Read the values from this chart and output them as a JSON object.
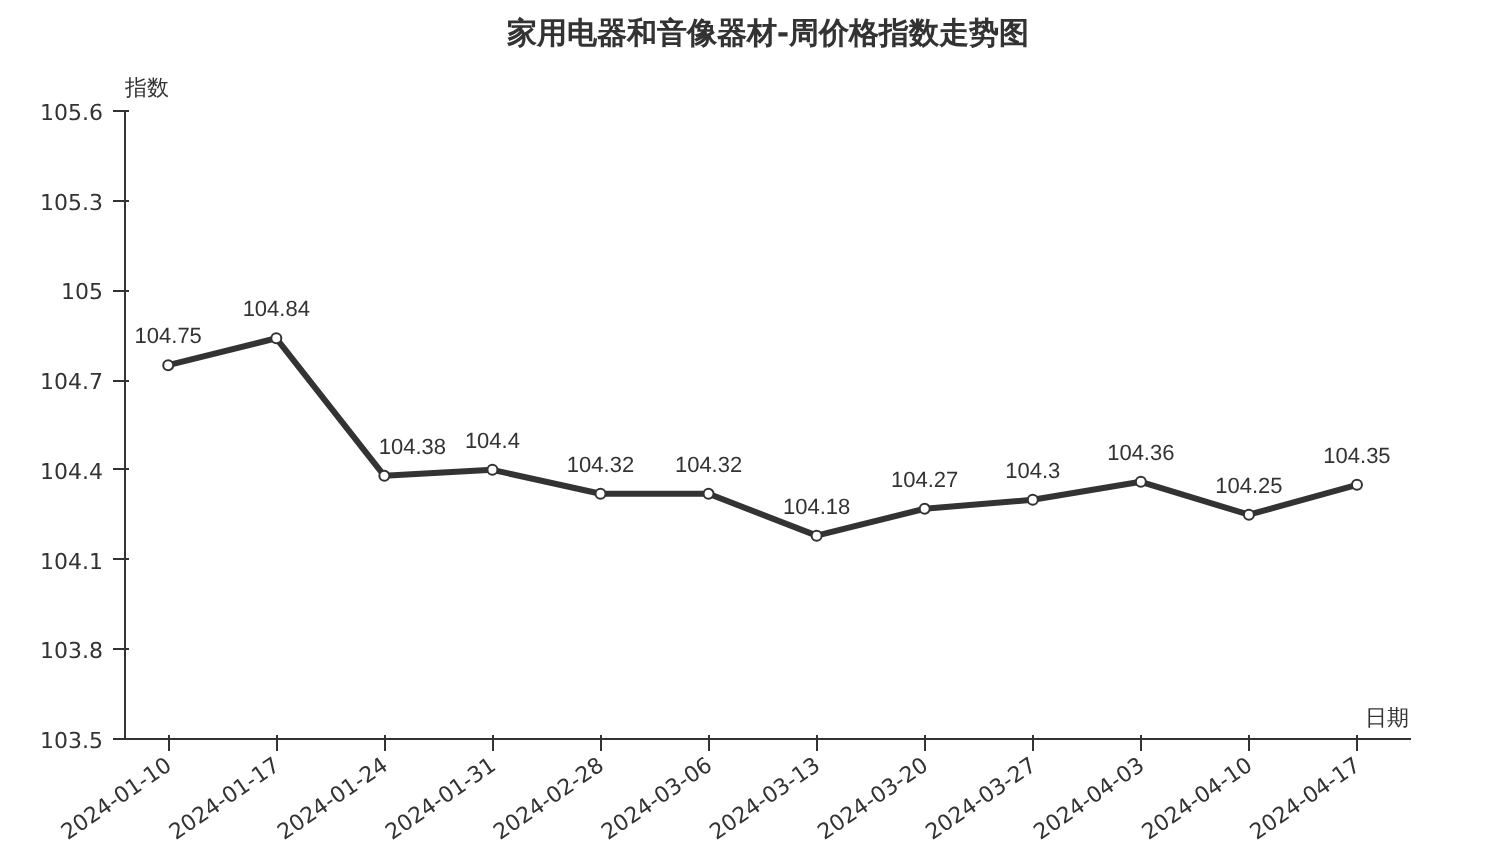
{
  "chart_data": {
    "type": "line",
    "title": "家用电器和音像器材-周价格指数走势图",
    "xlabel": "日期",
    "ylabel": "指数",
    "categories": [
      "2024-01-10",
      "2024-01-17",
      "2024-01-24",
      "2024-01-31",
      "2024-02-28",
      "2024-03-06",
      "2024-03-13",
      "2024-03-20",
      "2024-03-27",
      "2024-04-03",
      "2024-04-10",
      "2024-04-17"
    ],
    "series": [
      {
        "color": "#333333",
        "values": [
          104.75,
          104.84,
          104.38,
          104.4,
          104.32,
          104.32,
          104.18,
          104.27,
          104.3,
          104.36,
          104.25,
          104.35
        ]
      }
    ],
    "ylim": [
      103.5,
      105.6
    ],
    "yticks": [
      103.5,
      103.8,
      104.1,
      104.4,
      104.7,
      105,
      105.3,
      105.6
    ],
    "grid": false,
    "marker": "circle",
    "line_style": "solid",
    "data_labels": true
  }
}
